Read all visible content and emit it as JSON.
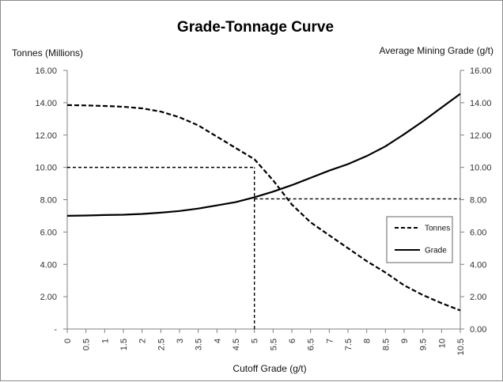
{
  "chart_data": {
    "type": "line",
    "title": "Grade-Tonnage Curve",
    "xlabel": "Cutoff Grade (g/t)",
    "ylabel": "Tonnes (Millions)",
    "y2label": "Average Mining Grade (g/t)",
    "x": [
      0,
      0.5,
      1,
      1.5,
      2,
      2.5,
      3,
      3.5,
      4,
      4.5,
      5,
      5.5,
      6,
      6.5,
      7,
      7.5,
      8,
      8.5,
      9,
      9.5,
      10,
      10.5
    ],
    "x_tick_labels": [
      "0",
      "0.5",
      "1",
      "1.5",
      "2",
      "2.5",
      "3",
      "3.5",
      "4",
      "4.5",
      "5",
      "5.5",
      "6",
      "6.5",
      "7",
      "7.5",
      "8",
      "8.5",
      "9",
      "9.5",
      "10",
      "10.5"
    ],
    "ylim": [
      0,
      16
    ],
    "y2lim": [
      0,
      16
    ],
    "y_tick_values": [
      0,
      2,
      4,
      6,
      8,
      10,
      12,
      14,
      16
    ],
    "y_tick_labels": [
      "-",
      "2.00",
      "4.00",
      "6.00",
      "8.00",
      "10.00",
      "12.00",
      "14.00",
      "16.00"
    ],
    "y2_tick_labels": [
      "0.00",
      "2.00",
      "4.00",
      "6.00",
      "8.00",
      "10.00",
      "12.00",
      "14.00",
      "16.00"
    ],
    "series": [
      {
        "name": "Tonnes",
        "axis": "left",
        "style": "dashed",
        "values": [
          13.85,
          13.83,
          13.8,
          13.75,
          13.65,
          13.45,
          13.1,
          12.6,
          11.9,
          11.2,
          10.5,
          9.2,
          7.7,
          6.6,
          5.8,
          5.0,
          4.2,
          3.5,
          2.7,
          2.1,
          1.6,
          1.15
        ]
      },
      {
        "name": "Grade",
        "axis": "right",
        "style": "solid",
        "values": [
          7.0,
          7.02,
          7.05,
          7.07,
          7.12,
          7.2,
          7.3,
          7.45,
          7.65,
          7.85,
          8.15,
          8.5,
          8.9,
          9.35,
          9.8,
          10.2,
          10.7,
          11.3,
          12.05,
          12.85,
          13.7,
          14.55
        ]
      }
    ],
    "reference_lines": [
      {
        "name": "tonnes-reference",
        "axis": "left",
        "from_x": 0,
        "to_x": 5,
        "y": 10.0
      },
      {
        "name": "grade-reference",
        "axis": "right",
        "from_x": 5,
        "to_x": 10.5,
        "y": 8.05
      },
      {
        "name": "cutoff-reference",
        "x": 5,
        "from_y": 0,
        "to_y": 10.0
      }
    ],
    "legend": {
      "position": "right",
      "entries": [
        {
          "label": "Tonnes",
          "style": "dashed"
        },
        {
          "label": "Grade",
          "style": "solid"
        }
      ]
    },
    "colors": {
      "line": "#000000",
      "axis": "#7f7f7f",
      "background": "#ffffff"
    }
  }
}
